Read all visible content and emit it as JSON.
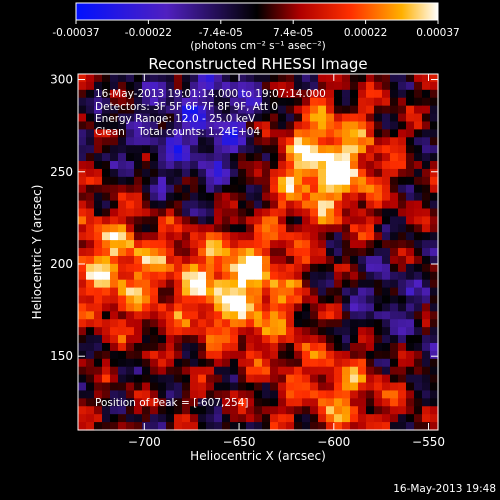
{
  "colorbar": {
    "ticks": [
      "-0.00037",
      "-0.00022",
      "-7.4e-05",
      "7.4e-05",
      "0.00022",
      "0.00037"
    ],
    "unit_label": "(photons cm⁻² s⁻¹ asec⁻²)"
  },
  "chart_data": {
    "type": "heatmap",
    "title": "Reconstructed RHESSI Image",
    "xlabel": "Heliocentric X (arcsec)",
    "ylabel": "Heliocentric Y (arcsec)",
    "xlim": [
      -735,
      -545
    ],
    "ylim": [
      110,
      303
    ],
    "xticks": [
      -700,
      -650,
      -600,
      -550
    ],
    "yticks": [
      150,
      200,
      250,
      300
    ],
    "zlim": [
      -0.00037,
      0.00037
    ],
    "colormap": "rhessi-bipolar (blue-purple-black-red-yellow-white)",
    "sources": [
      {
        "x": -607,
        "y": 254,
        "peak": true
      },
      {
        "x": -650,
        "y": 188
      },
      {
        "x": -715,
        "y": 200
      },
      {
        "x": -595,
        "y": 135
      }
    ],
    "peak_label": "Position of Peak = [-607,254]"
  },
  "overlay": {
    "time_range": "16-May-2013 19:01:14.000 to 19:07:14.000",
    "detectors": "Detectors: 3F 5F 6F 7F 8F 9F, Att 0",
    "energy": "Energy Range: 12.0 - 25.0 keV",
    "clean": "Clean    Total counts: 1.24E+04"
  },
  "timestamp": "16-May-2013 19:48"
}
